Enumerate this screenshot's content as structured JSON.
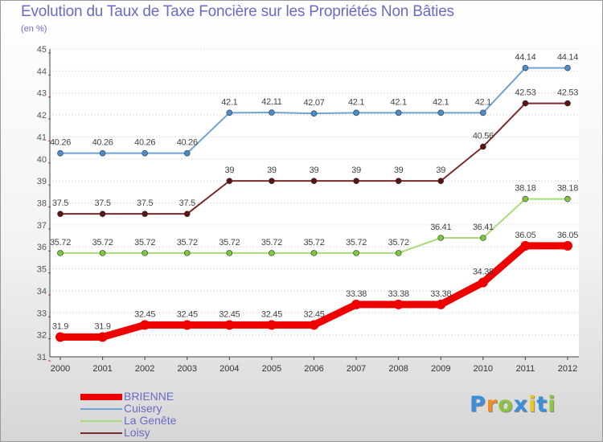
{
  "title": "Evolution du Taux de Taxe Foncière sur les Propriétés Non Bâties",
  "unit_label": "(en %)",
  "logo": {
    "text": "Proxiti",
    "letter_colors": [
      "#3a8fd8",
      "#f08a1c",
      "#8cc63e",
      "#3a8fd8",
      "#e8c81c",
      "#3a8fd8",
      "#8cc63e"
    ]
  },
  "chart_data": {
    "type": "line",
    "title": "Evolution du Taux de Taxe Foncière sur les Propriétés Non Bâties",
    "ylabel": "(en %)",
    "xlabel": "",
    "x": [
      "2000",
      "2001",
      "2002",
      "2003",
      "2004",
      "2005",
      "2006",
      "2007",
      "2008",
      "2009",
      "2010",
      "2011",
      "2012"
    ],
    "ylim": [
      31,
      45
    ],
    "yticks": [
      31,
      32,
      33,
      34,
      35,
      36,
      37,
      38,
      39,
      40,
      41,
      42,
      43,
      44,
      45
    ],
    "grid": "horizontal dotted",
    "legend_position": "bottom-left",
    "series": [
      {
        "name": "Cuisery",
        "color": "#6fa4d4",
        "marker_color": "#4a8ccc",
        "values": [
          40.26,
          40.26,
          40.26,
          40.26,
          42.1,
          42.11,
          42.07,
          42.1,
          42.1,
          42.1,
          42.1,
          44.14,
          44.14
        ],
        "labels": [
          "40.26",
          "40.26",
          "40.26",
          "40.26",
          "42.1",
          "42.11",
          "42.07",
          "42.1",
          "42.1",
          "42.1",
          "42.1",
          "44.14",
          "44.14"
        ]
      },
      {
        "name": "Loisy",
        "color": "#7a2a2a",
        "marker_color": "#5a1414",
        "values": [
          37.5,
          37.5,
          37.5,
          37.5,
          39,
          39,
          39,
          39,
          39,
          39,
          40.56,
          42.53,
          42.53
        ],
        "labels": [
          "37.5",
          "37.5",
          "37.5",
          "37.5",
          "39",
          "39",
          "39",
          "39",
          "39",
          "39",
          "40.56",
          "42.53",
          "42.53"
        ]
      },
      {
        "name": "La Genête",
        "color": "#a8dc78",
        "marker_color": "#7cc83c",
        "values": [
          35.72,
          35.72,
          35.72,
          35.72,
          35.72,
          35.72,
          35.72,
          35.72,
          35.72,
          36.41,
          36.41,
          38.18,
          38.18
        ],
        "labels": [
          "35.72",
          "35.72",
          "35.72",
          "35.72",
          "35.72",
          "35.72",
          "35.72",
          "35.72",
          "35.72",
          "36.41",
          "36.41",
          "38.18",
          "38.18"
        ]
      },
      {
        "name": "BRIENNE",
        "color": "#ee0000",
        "marker_color": "#ee0000",
        "values": [
          31.9,
          31.9,
          32.45,
          32.45,
          32.45,
          32.45,
          32.45,
          33.38,
          33.38,
          33.38,
          34.38,
          36.05,
          36.05
        ],
        "labels": [
          "31.9",
          "31.9",
          "32.45",
          "32.45",
          "32.45",
          "32.45",
          "32.45",
          "33.38",
          "33.38",
          "33.38",
          "34.38",
          "36.05",
          "36.05"
        ]
      }
    ],
    "legend": [
      {
        "name": "BRIENNE",
        "color": "#ee0000"
      },
      {
        "name": "Cuisery",
        "color": "#6fa4d4"
      },
      {
        "name": "La Genête",
        "color": "#a8dc78"
      },
      {
        "name": "Loisy",
        "color": "#7a2a2a"
      }
    ]
  }
}
